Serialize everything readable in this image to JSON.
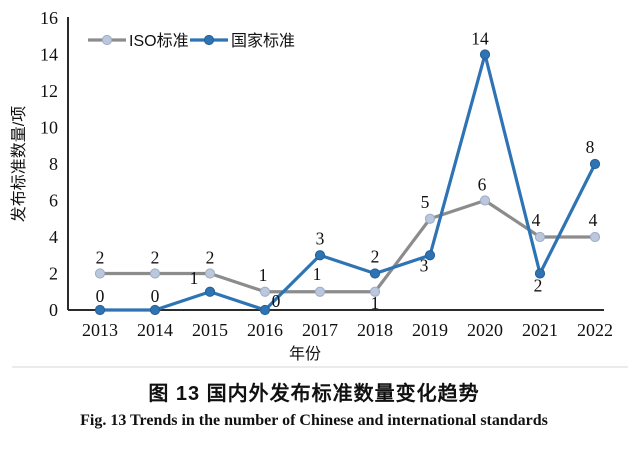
{
  "figure": {
    "title_zh": "图 13  国内外发布标准数量变化趋势",
    "caption_en": "Fig. 13  Trends in the number of Chinese and international standards"
  },
  "chart_data": {
    "type": "line",
    "x": [
      2013,
      2014,
      2015,
      2016,
      2017,
      2018,
      2019,
      2020,
      2021,
      2022
    ],
    "series": [
      {
        "name": "ISO标准",
        "values": [
          2,
          2,
          2,
          1,
          1,
          1,
          5,
          6,
          4,
          4
        ],
        "color": "#8C8C8C",
        "marker_fill": "#BAC7DD",
        "marker_stroke": "#9FACC4",
        "label_offsets": [
          [
            0,
            -10
          ],
          [
            0,
            -10
          ],
          [
            0,
            -10
          ],
          [
            -2,
            -11
          ],
          [
            -3,
            -12
          ],
          [
            0,
            17
          ],
          [
            -5,
            -11
          ],
          [
            -3,
            -10
          ],
          [
            -4,
            -11
          ],
          [
            -2,
            -11
          ]
        ]
      },
      {
        "name": "国家标准",
        "values": [
          0,
          0,
          1,
          0,
          3,
          2,
          3,
          14,
          2,
          8
        ],
        "color": "#2E74B5",
        "marker_fill": "#2E74B5",
        "marker_stroke": "#275F93",
        "label_offsets": [
          [
            0,
            -8
          ],
          [
            0,
            -8
          ],
          [
            -16,
            -8
          ],
          [
            11,
            -3
          ],
          [
            0,
            -11
          ],
          [
            0,
            -11
          ],
          [
            -6,
            16
          ],
          [
            -5,
            -10
          ],
          [
            -2,
            18
          ],
          [
            -5,
            -11
          ]
        ]
      }
    ],
    "xlabel": "年份",
    "ylabel": "发布标准数量/项",
    "ylim": [
      0,
      16
    ],
    "ytick_step": 2,
    "grid": false,
    "legend_position": "top-inside",
    "axis_color": "#2b2b2b",
    "label_color": "#111111",
    "separator_color": "#ebebeb"
  }
}
